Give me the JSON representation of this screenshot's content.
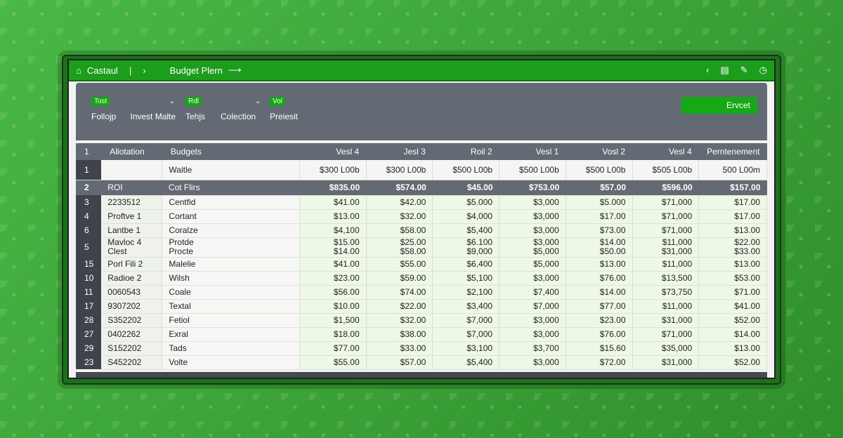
{
  "titlebar": {
    "app_name": "Castaul",
    "separator": "|",
    "nav_glyph": "›",
    "file_title": "Budget Plern",
    "arrow": "⟶",
    "right_icons": [
      "chevron-left-icon",
      "sheet-icon",
      "edit-icon",
      "clock-icon"
    ]
  },
  "toolbar": {
    "chips": [
      "Tost",
      "Rdl",
      "Vol"
    ],
    "labels": [
      "Follojp",
      "Invest Malte",
      "Tehjs",
      "Colection",
      "Preiesit"
    ],
    "export_label": "Ervcet"
  },
  "table": {
    "headers": [
      "1",
      "Allotation",
      "Budgets",
      "Vesl 4",
      "Jesl 3",
      "Roil 2",
      "Vesl 1",
      "Vosl 2",
      "Vesl 4",
      "Perntenement"
    ],
    "subhead": {
      "rownum": "1",
      "c1": "",
      "c2": "Waitle",
      "values": [
        "$300 L00b",
        "$300 L00b",
        "$500 L00b",
        "$500 L00b",
        "$500 L00b",
        "$505 L00b",
        "500 L00m"
      ]
    },
    "sums": {
      "rownum": "2",
      "c1": "ROI",
      "c2": "Cot Flirs",
      "values": [
        "$835.00",
        "$574.00",
        "$45.00",
        "$753.00",
        "$57.00",
        "$596.00",
        "$157.00"
      ]
    },
    "rows": [
      {
        "rownum": "3",
        "c1": "2233512",
        "c2": "Centfid",
        "values": [
          "$41.00",
          "$42.00",
          "$5.000",
          "$3,000",
          "$5.000",
          "$71,000",
          "$17.00"
        ]
      },
      {
        "rownum": "4",
        "c1": "Proftve 1",
        "c2": "Cortant",
        "values": [
          "$13.00",
          "$32.00",
          "$4,000",
          "$3,000",
          "$17.00",
          "$71,000",
          "$17.00"
        ]
      },
      {
        "rownum": "6",
        "c1": "Lantbe 1",
        "c2": "Coralze",
        "values": [
          "$4,100",
          "$58.00",
          "$5,400",
          "$3,000",
          "$73.00",
          "$71,000",
          "$13.00"
        ]
      },
      {
        "rownum": "5",
        "c1": "Mavloc 4",
        "c1b": "Clest",
        "c2": "Protde",
        "c2b": "Procte",
        "values": [
          "$15.00",
          "$25.00",
          "$6.100",
          "$3,000",
          "$14.00",
          "$11,000",
          "$22.00"
        ],
        "values_b": [
          "$14.00",
          "$58.00",
          "$9,000",
          "$5,000",
          "$50.00",
          "$31,000",
          "$33.00"
        ]
      },
      {
        "rownum": "15",
        "c1": "Porl Fili 2",
        "c2": "Malelie",
        "values": [
          "$41.00",
          "$55.00",
          "$6,400",
          "$5,000",
          "$13.00",
          "$11,000",
          "$13.00"
        ]
      },
      {
        "rownum": "10",
        "c1": "Radioe 2",
        "c2": "Wilsh",
        "values": [
          "$23.00",
          "$59.00",
          "$5,100",
          "$3,000",
          "$76.00",
          "$13,500",
          "$53.00"
        ]
      },
      {
        "rownum": "11",
        "c1": "0060543",
        "c2": "Coale",
        "values": [
          "$56.00",
          "$74.00",
          "$2,100",
          "$7,400",
          "$14.00",
          "$73,750",
          "$71.00"
        ]
      },
      {
        "rownum": "17",
        "c1": "9307202",
        "c2": "Textal",
        "values": [
          "$10.00",
          "$22.00",
          "$3,400",
          "$7,000",
          "$77.00",
          "$11,000",
          "$41.00"
        ]
      },
      {
        "rownum": "28",
        "c1": "S352202",
        "c2": "Fetiol",
        "values": [
          "$1,500",
          "$32.00",
          "$7,000",
          "$3,000",
          "$23.00",
          "$31,000",
          "$52.00"
        ]
      },
      {
        "rownum": "27",
        "c1": "0402262",
        "c2": "Exral",
        "values": [
          "$18.00",
          "$38.00",
          "$7,000",
          "$3,000",
          "$76.00",
          "$71,000",
          "$14.00"
        ]
      },
      {
        "rownum": "29",
        "c1": "S152202",
        "c2": "Tads",
        "values": [
          "$77.00",
          "$33.00",
          "$3,100",
          "$3,700",
          "$15.60",
          "$35,000",
          "$13.00"
        ]
      },
      {
        "rownum": "23",
        "c1": "S452202",
        "c2": "Volte",
        "values": [
          "$55.00",
          "$57.00",
          "$5,400",
          "$3,000",
          "$72.00",
          "$31,000",
          "$52.00"
        ]
      }
    ]
  },
  "colors": {
    "titlebar": "#1c9d1c",
    "toolbar": "#646a73",
    "accent": "#16a916",
    "cell_green": "#eef8e6"
  }
}
